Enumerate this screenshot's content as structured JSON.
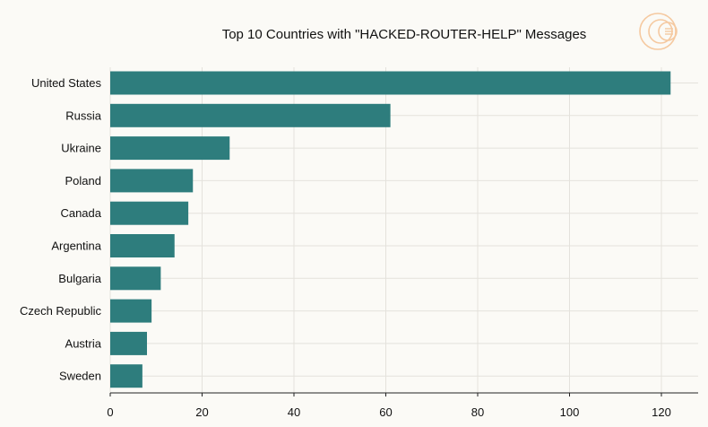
{
  "chart_data": {
    "type": "bar",
    "orientation": "horizontal",
    "title": "Top 10 Countries with \"HACKED-ROUTER-HELP\" Messages",
    "xlabel": "",
    "ylabel": "",
    "categories": [
      "United States",
      "Russia",
      "Ukraine",
      "Poland",
      "Canada",
      "Argentina",
      "Bulgaria",
      "Czech Republic",
      "Austria",
      "Sweden"
    ],
    "values": [
      122,
      61,
      26,
      18,
      17,
      14,
      11,
      9,
      8,
      7
    ],
    "xlim": [
      0,
      128
    ],
    "xticks": [
      0,
      20,
      40,
      60,
      80,
      100,
      120
    ],
    "grid": true,
    "bar_color": "#2e7d7d",
    "logo_color": "#f5c9a0"
  }
}
